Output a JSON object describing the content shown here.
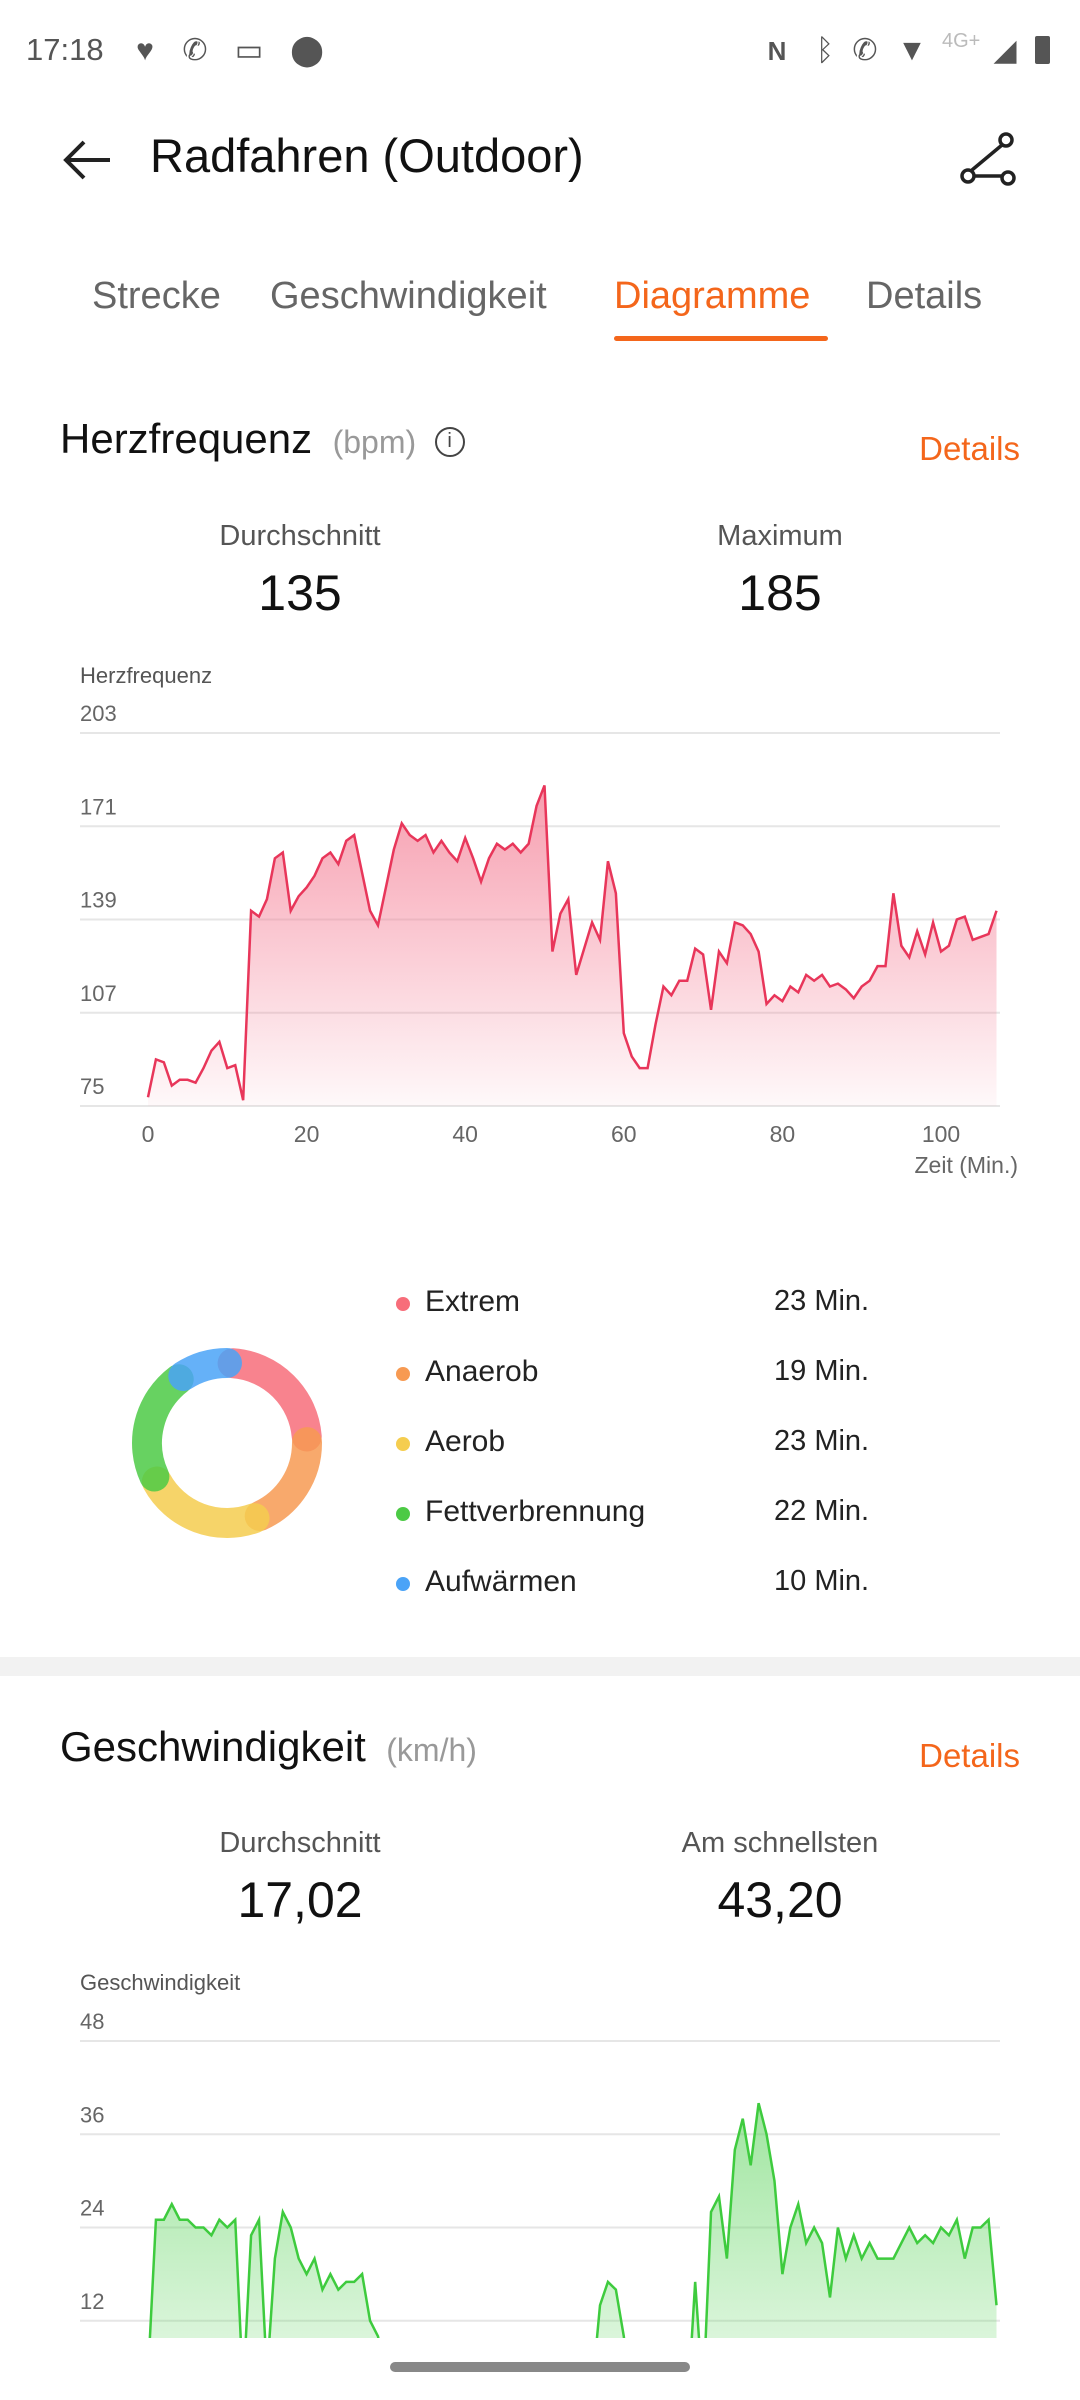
{
  "status_bar": {
    "time": "17:18",
    "network": "4G+"
  },
  "header": {
    "title": "Radfahren (Outdoor)"
  },
  "tabs": [
    {
      "label": "Strecke"
    },
    {
      "label": "Geschwindigkeit"
    },
    {
      "label": "Diagramme",
      "active": true
    },
    {
      "label": "Details"
    }
  ],
  "heart": {
    "title": "Herzfrequenz",
    "unit": "(bpm)",
    "details": "Details",
    "avg_label": "Durchschnitt",
    "avg": "135",
    "max_label": "Maximum",
    "max": "185",
    "zones": [
      {
        "label": "Extrem",
        "value": "23 Min.",
        "minutes": 23,
        "color": "#f76d7a"
      },
      {
        "label": "Anaerob",
        "value": "19 Min.",
        "minutes": 19,
        "color": "#f79a52"
      },
      {
        "label": "Aerob",
        "value": "23 Min.",
        "minutes": 23,
        "color": "#f5cd4f"
      },
      {
        "label": "Fettverbrennung",
        "value": "22 Min.",
        "minutes": 22,
        "color": "#4cca45"
      },
      {
        "label": "Aufwärmen",
        "value": "10 Min.",
        "minutes": 10,
        "color": "#4aa3f7"
      }
    ]
  },
  "speed": {
    "title": "Geschwindigkeit",
    "unit": "(km/h)",
    "details": "Details",
    "avg_label": "Durchschnitt",
    "avg": "17,02",
    "max_label": "Am schnellsten",
    "max": "43,20"
  },
  "chart_data": [
    {
      "type": "area",
      "ylabel": "Herzfrequenz",
      "xlabel": "Zeit (Min.)",
      "color": "#e8365a",
      "yticks": [
        203,
        171,
        139,
        107,
        75
      ],
      "xticks": [
        0,
        20,
        40,
        60,
        80,
        100
      ],
      "ylim": [
        75,
        203
      ],
      "xlim": [
        0,
        107
      ],
      "x": [
        0,
        1,
        2,
        3,
        4,
        5,
        6,
        7,
        8,
        9,
        10,
        11,
        12,
        13,
        14,
        15,
        16,
        17,
        18,
        19,
        20,
        21,
        22,
        23,
        24,
        25,
        26,
        27,
        28,
        29,
        30,
        31,
        32,
        33,
        34,
        35,
        36,
        37,
        38,
        39,
        40,
        41,
        42,
        43,
        44,
        45,
        46,
        47,
        48,
        49,
        50,
        51,
        52,
        53,
        54,
        55,
        56,
        57,
        58,
        59,
        60,
        61,
        62,
        63,
        64,
        65,
        66,
        67,
        68,
        69,
        70,
        71,
        72,
        73,
        74,
        75,
        76,
        77,
        78,
        79,
        80,
        81,
        82,
        83,
        84,
        85,
        86,
        87,
        88,
        89,
        90,
        91,
        92,
        93,
        94,
        95,
        96,
        97,
        98,
        99,
        100,
        101,
        102,
        103,
        104,
        105,
        106,
        107
      ],
      "y": [
        78,
        91,
        90,
        82,
        84,
        84,
        83,
        88,
        94,
        97,
        88,
        89,
        77,
        142,
        140,
        146,
        160,
        162,
        142,
        147,
        150,
        154,
        160,
        162,
        158,
        166,
        168,
        155,
        142,
        137,
        150,
        163,
        172,
        168,
        166,
        168,
        162,
        166,
        162,
        159,
        167,
        160,
        152,
        160,
        165,
        163,
        165,
        162,
        165,
        178,
        185,
        128,
        141,
        146,
        120,
        129,
        138,
        132,
        159,
        148,
        100,
        92,
        88,
        88,
        103,
        116,
        113,
        118,
        118,
        129,
        127,
        108,
        128,
        124,
        138,
        137,
        134,
        128,
        110,
        113,
        111,
        116,
        114,
        120,
        118,
        120,
        116,
        117,
        115,
        112,
        116,
        118,
        123,
        123,
        148,
        130,
        126,
        135,
        127,
        138,
        128,
        130,
        139,
        140,
        132,
        133,
        134,
        142
      ]
    },
    {
      "type": "area",
      "ylabel": "Geschwindigkeit",
      "color": "#3ecb3e",
      "yticks": [
        48,
        36,
        24,
        12
      ],
      "ylim": [
        0,
        48
      ],
      "xlim": [
        0,
        107
      ],
      "x": [
        0,
        1,
        2,
        3,
        4,
        5,
        6,
        7,
        8,
        9,
        10,
        11,
        12,
        13,
        14,
        15,
        16,
        17,
        18,
        19,
        20,
        21,
        22,
        23,
        24,
        25,
        26,
        27,
        28,
        29,
        30,
        32,
        34,
        36,
        38,
        40,
        42,
        44,
        45,
        46,
        47,
        50,
        54,
        56,
        57,
        58,
        59,
        60,
        61,
        64,
        68,
        69,
        70,
        71,
        72,
        73,
        74,
        75,
        76,
        77,
        78,
        79,
        80,
        81,
        82,
        83,
        84,
        85,
        86,
        87,
        88,
        89,
        90,
        91,
        92,
        93,
        94,
        95,
        96,
        97,
        98,
        99,
        100,
        101,
        102,
        103,
        104,
        105,
        106,
        107
      ],
      "y": [
        5,
        25,
        25,
        27,
        25,
        25,
        24,
        24,
        23,
        25,
        24,
        25,
        3,
        23,
        25,
        5,
        20,
        26,
        24,
        20,
        18,
        20,
        16,
        18,
        16,
        17,
        17,
        18,
        12,
        10,
        5,
        1,
        0,
        1,
        0,
        1,
        0,
        2,
        4,
        1,
        0,
        0,
        1,
        3,
        14,
        17,
        16,
        10,
        0,
        0,
        0,
        17,
        2,
        26,
        28,
        20,
        34,
        38,
        32,
        40,
        36,
        30,
        18,
        24,
        27,
        22,
        24,
        22,
        15,
        24,
        20,
        23,
        20,
        22,
        20,
        20,
        20,
        22,
        24,
        22,
        23,
        22,
        24,
        23,
        25,
        20,
        24,
        24,
        25,
        14
      ]
    }
  ]
}
